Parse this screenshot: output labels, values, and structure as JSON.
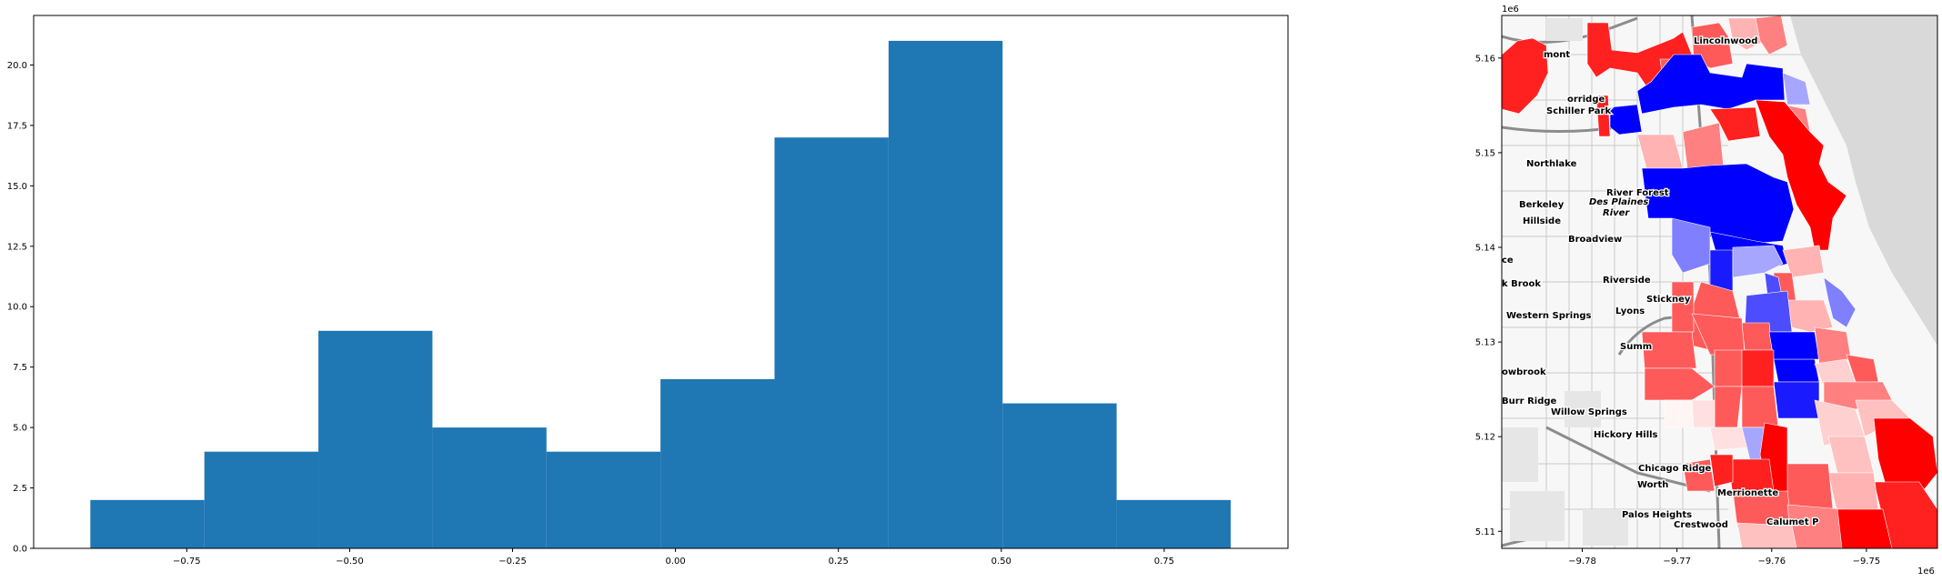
{
  "chart_data": [
    {
      "type": "bar",
      "title": "",
      "xlabel": "",
      "ylabel": "",
      "bin_edges": [
        -0.898,
        -0.723,
        -0.548,
        -0.373,
        -0.198,
        -0.023,
        0.152,
        0.327,
        0.502,
        0.677,
        0.852
      ],
      "values": [
        2,
        4,
        9,
        5,
        4,
        7,
        17,
        21,
        6,
        2
      ],
      "xlim": [
        -0.985,
        0.94
      ],
      "ylim": [
        0,
        22.05
      ],
      "xticks": [
        -0.75,
        -0.5,
        -0.25,
        0.0,
        0.25,
        0.5,
        0.75
      ],
      "xtick_labels": [
        "−0.75",
        "−0.50",
        "−0.25",
        "0.00",
        "0.25",
        "0.50",
        "0.75"
      ],
      "yticks": [
        0.0,
        2.5,
        5.0,
        7.5,
        10.0,
        12.5,
        15.0,
        17.5,
        20.0
      ],
      "ytick_labels": [
        "0.0",
        "2.5",
        "5.0",
        "7.5",
        "10.0",
        "12.5",
        "15.0",
        "17.5",
        "20.0"
      ],
      "bar_color": "#1f77b4",
      "grid": false
    },
    {
      "type": "map",
      "title": "",
      "xlim": [
        -9.7885,
        -9.7425
      ],
      "ylim": [
        5.1082,
        5.1645
      ],
      "x_offset_label": "1e6",
      "y_offset_label": "1e6",
      "xticks": [
        -9.78,
        -9.77,
        -9.76,
        -9.75
      ],
      "xtick_labels": [
        "−9.78",
        "−9.77",
        "−9.76",
        "−9.75"
      ],
      "yticks": [
        5.11,
        5.12,
        5.13,
        5.14,
        5.15,
        5.16
      ],
      "ytick_labels": [
        "5.11",
        "5.12",
        "5.13",
        "5.14",
        "5.15",
        "5.16"
      ],
      "colormap": "bwr",
      "colors": {
        "strong_red": "#ff0000",
        "mid_red": "#ff5a5a",
        "light_red": "#ffb3b3",
        "strong_blue": "#0000ff",
        "mid_blue": "#4d4dff",
        "light_blue": "#a6a6ff",
        "water": "#d9d9d9"
      },
      "place_labels": [
        "Lincolnwood",
        "mont",
        "orridge",
        "Schiller Park",
        "Northlake",
        "River Forest",
        "Des Plaines",
        "River",
        "Berkeley",
        "Hillside",
        "Broadview",
        "ce",
        "k Brook",
        "Riverside",
        "Stickney",
        "Western Springs",
        "Lyons",
        "Summ",
        "owbrook",
        "Burr Ridge",
        "Willow Springs",
        "Hickory Hills",
        "Chicago Ridge",
        "Worth",
        "Merrionette",
        "Palos Heights",
        "Crestwood",
        "Calumet P"
      ]
    }
  ]
}
